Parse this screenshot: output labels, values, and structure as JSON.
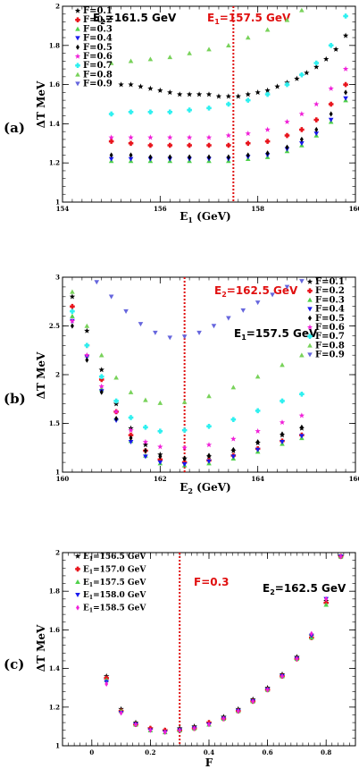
{
  "colors": {
    "black": "#000000",
    "red": "#e8141c",
    "green": "#4fd14a",
    "blue": "#1a1aee",
    "darkred": "#9a3030",
    "magenta": "#f020d8",
    "cyan": "#2ef0f0",
    "lightgreen": "#78d25a",
    "slate": "#6666dd",
    "annotation_red": "#e01010"
  },
  "chart_data": [
    {
      "type": "scatter",
      "panel_label": "(a)",
      "xlabel_main": "E",
      "xlabel_sub": "1",
      "xlabel_unit": " (GeV)",
      "ylabel": "ΔT MeV",
      "xlim": [
        154,
        160
      ],
      "ylim": [
        1,
        2
      ],
      "xticks": [
        "154",
        "156",
        "158",
        "160"
      ],
      "yticks": [
        "1",
        "1.2",
        "1.4",
        "1.6",
        "1.8",
        "2"
      ],
      "annotations": [
        {
          "main": "E",
          "sub": "2",
          "rest": "=161.5 GeV",
          "color": "black"
        },
        {
          "main": "E",
          "sub": "1",
          "rest": "=157.5 GeV",
          "color": "annotation_red"
        }
      ],
      "vline": 157.5,
      "legend_placement": "top-left",
      "series": [
        {
          "name": "F=0.1",
          "marker": "star",
          "color": "black",
          "x": [
            155.2,
            155.4,
            155.6,
            155.8,
            156.0,
            156.2,
            156.4,
            156.6,
            156.8,
            157.0,
            157.2,
            157.4,
            157.6,
            157.8,
            158.0,
            158.2,
            158.4,
            158.6,
            158.8,
            159.0,
            159.2,
            159.4,
            159.6,
            159.8
          ],
          "y": [
            1.6,
            1.6,
            1.59,
            1.58,
            1.57,
            1.56,
            1.55,
            1.55,
            1.55,
            1.55,
            1.54,
            1.54,
            1.54,
            1.55,
            1.56,
            1.57,
            1.59,
            1.61,
            1.63,
            1.66,
            1.69,
            1.73,
            1.78,
            1.85
          ]
        },
        {
          "name": "F=0.2",
          "marker": "cross",
          "color": "red",
          "x": [
            155.0,
            155.4,
            155.8,
            156.2,
            156.6,
            157.0,
            157.4,
            157.8,
            158.2,
            158.6,
            158.9,
            159.2,
            159.5,
            159.8
          ],
          "y": [
            1.31,
            1.3,
            1.29,
            1.29,
            1.29,
            1.29,
            1.29,
            1.3,
            1.31,
            1.34,
            1.37,
            1.42,
            1.5,
            1.6
          ]
        },
        {
          "name": "F=0.3",
          "marker": "triangle",
          "color": "green",
          "x": [
            155.0,
            155.4,
            155.8,
            156.2,
            156.6,
            157.0,
            157.4,
            157.8,
            158.2,
            158.6,
            158.9,
            159.2,
            159.5,
            159.8
          ],
          "y": [
            1.21,
            1.21,
            1.21,
            1.21,
            1.21,
            1.21,
            1.21,
            1.22,
            1.23,
            1.26,
            1.29,
            1.34,
            1.41,
            1.52
          ]
        },
        {
          "name": "F=0.4",
          "marker": "triangle-down",
          "color": "blue",
          "x": [
            155.0,
            155.4,
            155.8,
            156.2,
            156.6,
            157.0,
            157.4,
            157.8,
            158.2,
            158.6,
            158.9,
            159.2,
            159.5,
            159.8
          ],
          "y": [
            1.22,
            1.22,
            1.22,
            1.22,
            1.22,
            1.22,
            1.22,
            1.23,
            1.24,
            1.27,
            1.3,
            1.35,
            1.42,
            1.53
          ]
        },
        {
          "name": "F=0.5",
          "marker": "diamond",
          "color": "black",
          "x": [
            155.0,
            155.4,
            155.8,
            156.2,
            156.6,
            157.0,
            157.4,
            157.8,
            158.2,
            158.6,
            158.9,
            159.2,
            159.5,
            159.8
          ],
          "y": [
            1.24,
            1.24,
            1.23,
            1.23,
            1.23,
            1.23,
            1.23,
            1.24,
            1.25,
            1.28,
            1.32,
            1.37,
            1.45,
            1.56
          ]
        },
        {
          "name": "F=0.6",
          "marker": "star",
          "color": "magenta",
          "x": [
            155.0,
            155.4,
            155.8,
            156.2,
            156.6,
            157.0,
            157.4,
            157.8,
            158.2,
            158.6,
            158.9,
            159.2,
            159.5,
            159.8
          ],
          "y": [
            1.33,
            1.33,
            1.33,
            1.33,
            1.33,
            1.33,
            1.34,
            1.35,
            1.37,
            1.41,
            1.45,
            1.5,
            1.58,
            1.68
          ]
        },
        {
          "name": "F=0.7",
          "marker": "cross",
          "color": "cyan",
          "x": [
            155.0,
            155.4,
            155.8,
            156.2,
            156.6,
            157.0,
            157.4,
            157.8,
            158.2,
            158.6,
            158.9,
            159.2,
            159.5,
            159.8
          ],
          "y": [
            1.45,
            1.46,
            1.46,
            1.46,
            1.47,
            1.48,
            1.5,
            1.52,
            1.55,
            1.6,
            1.65,
            1.71,
            1.8,
            1.95
          ]
        },
        {
          "name": "F=0.8",
          "marker": "triangle",
          "color": "lightgreen",
          "x": [
            155.0,
            155.4,
            155.8,
            156.2,
            156.6,
            157.0,
            157.4,
            157.8,
            158.2,
            158.6,
            158.9
          ],
          "y": [
            1.71,
            1.72,
            1.73,
            1.74,
            1.76,
            1.78,
            1.8,
            1.84,
            1.88,
            1.93,
            1.98
          ]
        },
        {
          "name": "F=0.9",
          "marker": "triangle-down",
          "color": "slate",
          "x": [],
          "y": []
        }
      ]
    },
    {
      "type": "scatter",
      "panel_label": "(b)",
      "xlabel_main": "E",
      "xlabel_sub": "2",
      "xlabel_unit": " (GeV)",
      "ylabel": "ΔT MeV",
      "xlim": [
        160,
        166
      ],
      "ylim": [
        1,
        3
      ],
      "xticks": [
        "160",
        "162",
        "164",
        "166"
      ],
      "yticks": [
        "1",
        "1.5",
        "2",
        "2.5",
        "3"
      ],
      "annotations": [
        {
          "main": "E",
          "sub": "2",
          "rest": "=162.5 GeV",
          "color": "annotation_red"
        },
        {
          "main": "E",
          "sub": "1",
          "rest": "=157.5 GeV",
          "color": "black"
        }
      ],
      "vline": 162.5,
      "legend_placement": "top-right",
      "series": [
        {
          "name": "F=0.1",
          "marker": "star",
          "color": "black",
          "x": [
            160.2,
            160.5,
            160.8,
            161.1,
            161.4,
            161.7,
            162.0,
            162.5,
            163.0,
            163.5,
            164.0,
            164.5,
            164.9
          ],
          "y": [
            2.8,
            2.45,
            2.05,
            1.7,
            1.45,
            1.28,
            1.18,
            1.14,
            1.16,
            1.22,
            1.3,
            1.38,
            1.45
          ]
        },
        {
          "name": "F=0.2",
          "marker": "cross",
          "color": "red",
          "x": [
            160.2,
            160.5,
            160.8,
            161.1,
            161.4,
            161.7,
            162.0,
            162.5,
            163.0,
            163.5,
            164.0,
            164.5,
            164.9
          ],
          "y": [
            2.7,
            2.3,
            1.95,
            1.62,
            1.38,
            1.22,
            1.13,
            1.1,
            1.12,
            1.17,
            1.24,
            1.32,
            1.38
          ]
        },
        {
          "name": "F=0.3",
          "marker": "triangle",
          "color": "green",
          "x": [
            160.2,
            160.5,
            160.8,
            161.1,
            161.4,
            161.7,
            162.0,
            162.5,
            163.0,
            163.5,
            164.0,
            164.5,
            164.9
          ],
          "y": [
            2.6,
            2.2,
            1.85,
            1.55,
            1.32,
            1.17,
            1.09,
            1.07,
            1.09,
            1.14,
            1.21,
            1.29,
            1.35
          ]
        },
        {
          "name": "F=0.4",
          "marker": "triangle-down",
          "color": "blue",
          "x": [
            160.2,
            160.5,
            160.8,
            161.1,
            161.4,
            161.7,
            162.0,
            162.5,
            163.0,
            163.5,
            164.0,
            164.5,
            164.9
          ],
          "y": [
            2.55,
            2.18,
            1.83,
            1.53,
            1.31,
            1.16,
            1.1,
            1.08,
            1.11,
            1.16,
            1.23,
            1.31,
            1.37
          ]
        },
        {
          "name": "F=0.5",
          "marker": "diamond",
          "color": "black",
          "x": [
            160.2,
            160.5,
            160.8,
            161.1,
            161.4,
            161.7,
            162.0,
            162.5,
            163.0,
            163.5,
            164.0,
            164.5,
            164.9
          ],
          "y": [
            2.5,
            2.15,
            1.82,
            1.55,
            1.35,
            1.22,
            1.16,
            1.14,
            1.17,
            1.23,
            1.31,
            1.39,
            1.46
          ]
        },
        {
          "name": "F=0.6",
          "marker": "star",
          "color": "magenta",
          "x": [
            160.2,
            160.5,
            160.8,
            161.1,
            161.4,
            161.7,
            162.0,
            162.5,
            163.0,
            163.5,
            164.0,
            164.5,
            164.9
          ],
          "y": [
            2.55,
            2.2,
            1.88,
            1.62,
            1.43,
            1.31,
            1.26,
            1.25,
            1.28,
            1.34,
            1.42,
            1.51,
            1.58
          ]
        },
        {
          "name": "F=0.7",
          "marker": "cross",
          "color": "cyan",
          "x": [
            160.2,
            160.5,
            160.8,
            161.1,
            161.4,
            161.7,
            162.0,
            162.5,
            163.0,
            163.5,
            164.0,
            164.5,
            164.9
          ],
          "y": [
            2.65,
            2.3,
            1.98,
            1.73,
            1.56,
            1.46,
            1.42,
            1.43,
            1.47,
            1.54,
            1.63,
            1.73,
            1.8
          ]
        },
        {
          "name": "F=0.8",
          "marker": "triangle",
          "color": "lightgreen",
          "x": [
            160.2,
            160.5,
            160.8,
            161.1,
            161.4,
            161.7,
            162.0,
            162.5,
            163.0,
            163.5,
            164.0,
            164.5,
            164.9
          ],
          "y": [
            2.85,
            2.5,
            2.2,
            1.97,
            1.82,
            1.74,
            1.71,
            1.72,
            1.78,
            1.87,
            1.98,
            2.1,
            2.2
          ]
        },
        {
          "name": "F=0.9",
          "marker": "triangle-down",
          "color": "slate",
          "x": [
            160.7,
            161.0,
            161.3,
            161.6,
            161.9,
            162.2,
            162.5,
            162.8,
            163.1,
            163.4,
            163.7,
            164.0,
            164.3,
            164.6,
            164.9
          ],
          "y": [
            2.95,
            2.8,
            2.65,
            2.52,
            2.43,
            2.38,
            2.39,
            2.43,
            2.5,
            2.58,
            2.66,
            2.74,
            2.82,
            2.9,
            2.96
          ]
        }
      ]
    },
    {
      "type": "scatter",
      "panel_label": "(c)",
      "xlabel_main": "F",
      "xlabel_sub": "",
      "xlabel_unit": "",
      "ylabel": "ΔT MeV",
      "xlim": [
        -0.1,
        0.9
      ],
      "ylim": [
        1,
        2
      ],
      "xticks": [
        "0",
        "0.2",
        "0.4",
        "0.6",
        "0.8"
      ],
      "yticks": [
        "1",
        "1.2",
        "1.4",
        "1.6",
        "1.8",
        "2"
      ],
      "annotations": [
        {
          "main": "F=0.3",
          "sub": "",
          "rest": "",
          "color": "annotation_red"
        },
        {
          "main": "E",
          "sub": "2",
          "rest": "=162.5 GeV",
          "color": "black"
        }
      ],
      "vline": 0.3,
      "legend_placement": "top-left",
      "series": [
        {
          "name": "E1=156.5 GeV",
          "label_main": "E",
          "label_sub": "1",
          "label_rest": "=156.5 GeV",
          "marker": "star",
          "color": "black",
          "x": [
            0.05,
            0.1,
            0.15,
            0.2,
            0.25,
            0.3,
            0.35,
            0.4,
            0.45,
            0.5,
            0.55,
            0.6,
            0.65,
            0.7,
            0.75,
            0.8,
            0.85
          ],
          "y": [
            1.36,
            1.19,
            1.12,
            1.09,
            1.08,
            1.09,
            1.1,
            1.12,
            1.15,
            1.19,
            1.24,
            1.3,
            1.37,
            1.46,
            1.57,
            1.75,
            1.98
          ]
        },
        {
          "name": "E1=157.0 GeV",
          "label_main": "E",
          "label_sub": "1",
          "label_rest": "=157.0 GeV",
          "marker": "cross",
          "color": "red",
          "x": [
            0.05,
            0.1,
            0.15,
            0.2,
            0.25,
            0.3,
            0.35,
            0.4,
            0.45,
            0.5,
            0.55,
            0.6,
            0.65,
            0.7,
            0.75,
            0.8,
            0.85
          ],
          "y": [
            1.35,
            1.18,
            1.11,
            1.09,
            1.08,
            1.08,
            1.09,
            1.12,
            1.14,
            1.18,
            1.23,
            1.29,
            1.36,
            1.45,
            1.56,
            1.74,
            1.98
          ]
        },
        {
          "name": "E1=157.5 GeV",
          "label_main": "E",
          "label_sub": "1",
          "label_rest": "=157.5 GeV",
          "marker": "triangle",
          "color": "green",
          "x": [
            0.05,
            0.1,
            0.15,
            0.2,
            0.25,
            0.3,
            0.35,
            0.4,
            0.45,
            0.5,
            0.55,
            0.6,
            0.65,
            0.7,
            0.75,
            0.8,
            0.85
          ],
          "y": [
            1.34,
            1.18,
            1.11,
            1.08,
            1.07,
            1.08,
            1.09,
            1.11,
            1.14,
            1.18,
            1.23,
            1.29,
            1.36,
            1.45,
            1.56,
            1.73,
            1.98
          ]
        },
        {
          "name": "E1=158.0 GeV",
          "label_main": "E",
          "label_sub": "1",
          "label_rest": "=158.0 GeV",
          "marker": "triangle-down",
          "color": "blue",
          "x": [
            0.05,
            0.1,
            0.15,
            0.2,
            0.25,
            0.3,
            0.35,
            0.4,
            0.45,
            0.5,
            0.55,
            0.6,
            0.65,
            0.7,
            0.75,
            0.8,
            0.85
          ],
          "y": [
            1.33,
            1.17,
            1.11,
            1.08,
            1.07,
            1.08,
            1.09,
            1.11,
            1.14,
            1.18,
            1.23,
            1.29,
            1.36,
            1.45,
            1.57,
            1.76,
            1.98
          ]
        },
        {
          "name": "E1=158.5 GeV",
          "label_main": "E",
          "label_sub": "1",
          "label_rest": "=158.5 GeV",
          "marker": "diamond",
          "color": "magenta",
          "x": [
            0.05,
            0.1,
            0.15,
            0.2,
            0.25,
            0.3,
            0.35,
            0.4,
            0.45,
            0.5,
            0.55,
            0.6,
            0.65,
            0.7,
            0.75,
            0.8,
            0.85
          ],
          "y": [
            1.32,
            1.17,
            1.11,
            1.08,
            1.07,
            1.08,
            1.09,
            1.11,
            1.14,
            1.18,
            1.23,
            1.29,
            1.36,
            1.45,
            1.58,
            1.76,
            1.98
          ]
        }
      ]
    }
  ]
}
